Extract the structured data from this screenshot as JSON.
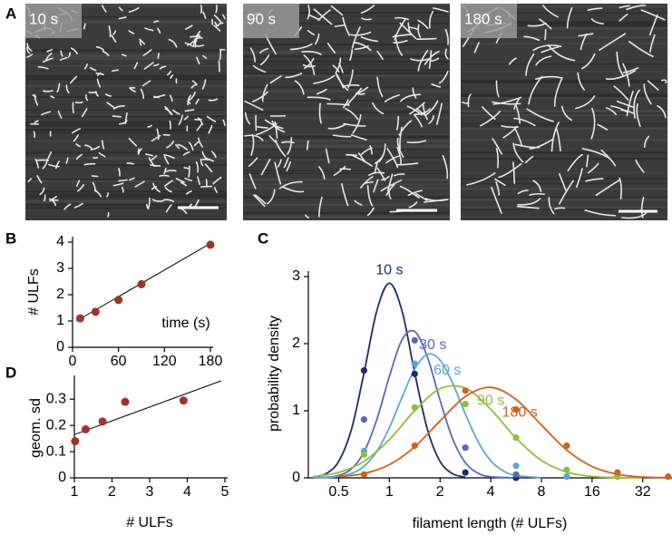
{
  "panel_labels": [
    "A",
    "B",
    "C",
    "D"
  ],
  "images": [
    {
      "label": "10 s"
    },
    {
      "label": "90 s"
    },
    {
      "label": "180 s"
    }
  ],
  "chart_data": [
    {
      "type": "scatter",
      "ylabel": "# ULFs",
      "xlabel": "time (s)",
      "x": [
        10,
        30,
        60,
        90,
        180
      ],
      "values": [
        1.1,
        1.35,
        1.8,
        2.4,
        3.9
      ],
      "color": "#a0322c",
      "fit": {
        "x": [
          5,
          180
        ],
        "values": [
          1.0,
          3.95
        ],
        "color": "#000000"
      },
      "xlim": [
        0,
        180
      ],
      "xticks": [
        0,
        60,
        120,
        180
      ],
      "ylim": [
        0,
        4
      ],
      "yticks": [
        0,
        1,
        2,
        3,
        4
      ]
    },
    {
      "type": "line",
      "ylabel": "probability density",
      "xlabel": "filament length (# ULFs)",
      "xscale": "log",
      "xlim": [
        0.33,
        46
      ],
      "xticks": [
        0.5,
        1,
        2,
        4,
        8,
        16,
        32
      ],
      "ylim": [
        0,
        3
      ],
      "yticks": [
        0,
        1,
        2,
        3
      ],
      "points_x": [
        0.707,
        1.414,
        2.828,
        5.657,
        11.31,
        22.63,
        45.25
      ],
      "series": [
        {
          "name": "10 s",
          "color": "#1f2a6b",
          "x": [
            0.354,
            0.42,
            0.5,
            0.595,
            0.707,
            0.841,
            1,
            1.189,
            1.414,
            1.682,
            2,
            2.378,
            2.828
          ],
          "values": [
            0.011,
            0.061,
            0.246,
            0.723,
            1.565,
            2.486,
            2.9,
            2.486,
            1.565,
            0.723,
            0.246,
            0.061,
            0.011
          ],
          "points": [
            1.6,
            1.55,
            0.08,
            0,
            null,
            null,
            null
          ]
        },
        {
          "name": "30 s",
          "color": "#5669b5",
          "x": [
            0.354,
            0.42,
            0.5,
            0.595,
            0.707,
            0.841,
            1,
            1.189,
            1.414,
            1.682,
            2,
            2.378,
            2.828,
            3.364,
            4,
            5.657
          ],
          "values": [
            0.001,
            0.008,
            0.036,
            0.134,
            0.386,
            0.865,
            1.512,
            2.058,
            2.18,
            1.8,
            1.157,
            0.579,
            0.226,
            0.069,
            0.016,
            0
          ],
          "points": [
            0.87,
            2.05,
            0.45,
            0.05,
            null,
            null,
            null
          ]
        },
        {
          "name": "60 s",
          "color": "#5ba7cc",
          "x": [
            0.354,
            0.42,
            0.5,
            0.595,
            0.707,
            0.841,
            1,
            1.189,
            1.414,
            1.682,
            2,
            2.378,
            2.828,
            3.364,
            4,
            4.757,
            5.657,
            8
          ],
          "values": [
            0.001,
            0.005,
            0.02,
            0.064,
            0.173,
            0.392,
            0.749,
            1.202,
            1.623,
            1.842,
            1.756,
            1.408,
            0.949,
            0.538,
            0.256,
            0.103,
            0.035,
            0.002
          ],
          "points": [
            0.4,
            1.7,
            1.1,
            0.18,
            0.02,
            null,
            null
          ]
        },
        {
          "name": "90 s",
          "color": "#8dbf3a",
          "x": [
            0.354,
            0.5,
            0.707,
            1,
            1.414,
            2,
            2.828,
            4,
            5.657,
            8,
            11.31,
            16,
            22.63,
            32
          ],
          "values": [
            0.02,
            0.081,
            0.247,
            0.57,
            1.0,
            1.328,
            1.337,
            1.021,
            0.591,
            0.26,
            0.086,
            0.022,
            0.004,
            0.001
          ],
          "points": [
            0.35,
            1.05,
            1.1,
            0.6,
            0.12,
            0.02,
            null
          ]
        },
        {
          "name": "180 s",
          "color": "#d0611e",
          "x": [
            0.5,
            0.707,
            1,
            1.414,
            2,
            2.828,
            4,
            5.657,
            8,
            11.31,
            16,
            22.63,
            32,
            45.25
          ],
          "values": [
            0.017,
            0.065,
            0.197,
            0.463,
            0.849,
            1.213,
            1.349,
            1.169,
            0.788,
            0.414,
            0.17,
            0.054,
            0.013,
            0.003
          ],
          "points": [
            0.05,
            0.48,
            1.3,
            1.02,
            0.48,
            0.08,
            0.02
          ]
        }
      ]
    },
    {
      "type": "scatter",
      "ylabel": "geom. sd",
      "xlabel": "# ULFs",
      "x": [
        1.02,
        1.3,
        1.75,
        2.35,
        3.9
      ],
      "values": [
        0.14,
        0.185,
        0.215,
        0.29,
        0.295
      ],
      "color": "#a0322c",
      "fit": {
        "x": [
          1,
          4.9
        ],
        "values": [
          0.165,
          0.37
        ],
        "color": "#000000"
      },
      "xlim": [
        1,
        5
      ],
      "xticks": [
        1,
        2,
        3,
        4,
        5
      ],
      "ylim": [
        0,
        0.37
      ],
      "yticks": [
        0,
        0.1,
        0.2,
        0.3
      ]
    }
  ]
}
